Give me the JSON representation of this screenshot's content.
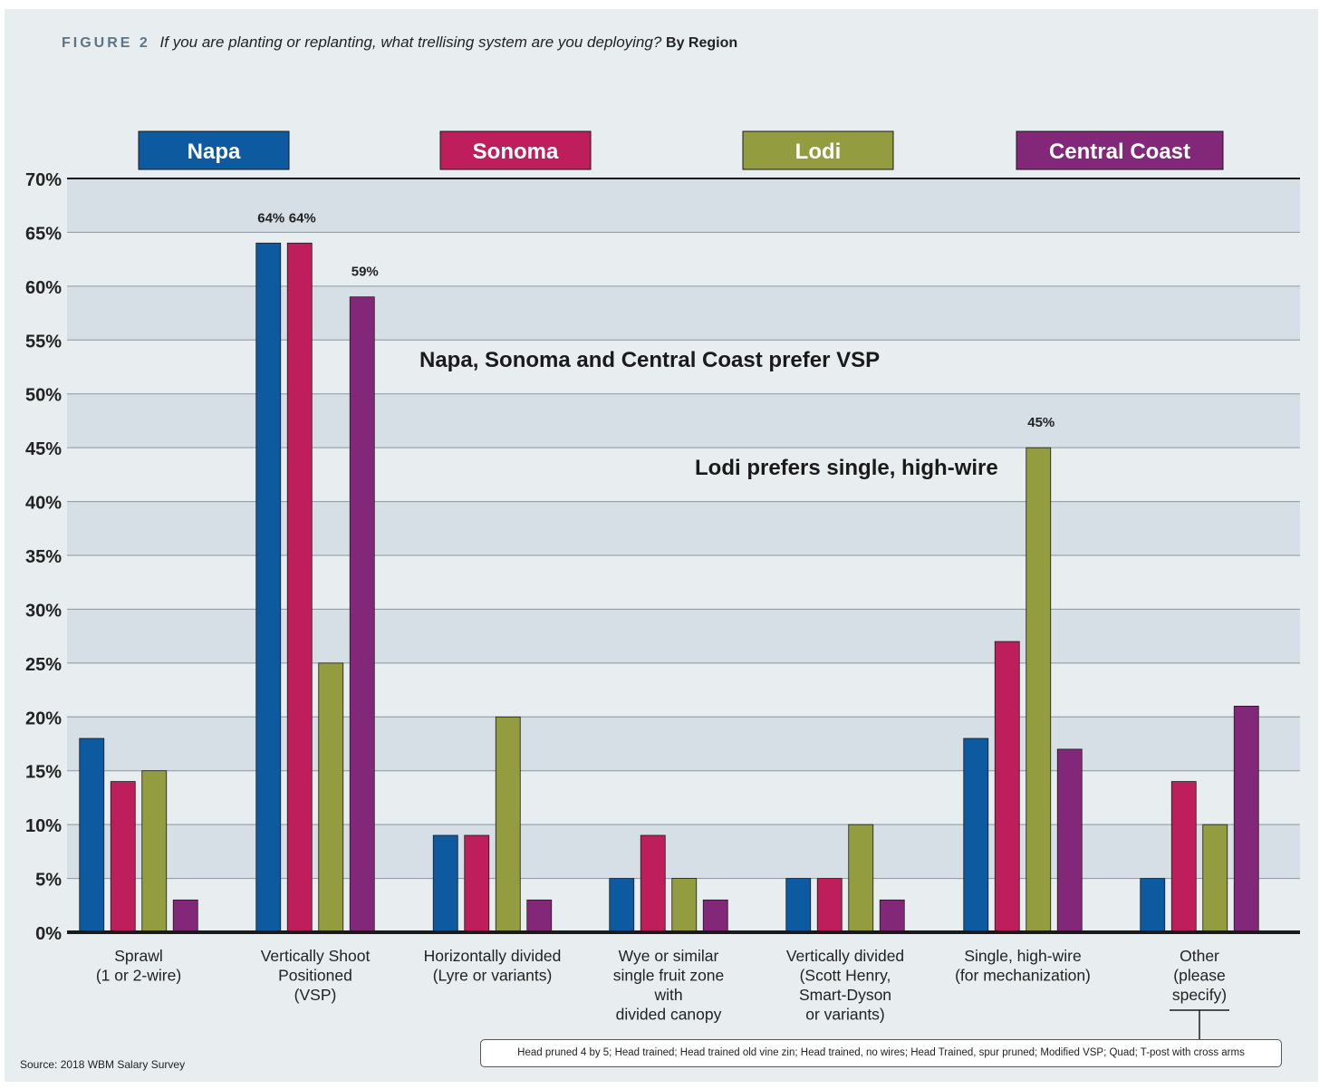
{
  "figure": {
    "label": "FIGURE 2",
    "question": "If you are planting or replanting, what trellising system are you deploying?",
    "suffix": "By Region"
  },
  "source": "Source: 2018 WBM Salary Survey",
  "footnote": "Head pruned 4 by 5; Head trained; Head trained old vine zin; Head trained, no wires; Head Trained, spur pruned; Modified VSP; Quad; T-post with cross arms",
  "chart_data": {
    "type": "bar",
    "title": "If you are planting or replanting, what trellising system are you deploying? By Region",
    "ylim": [
      0,
      70
    ],
    "yticks": [
      0,
      5,
      10,
      15,
      20,
      25,
      30,
      35,
      40,
      45,
      50,
      55,
      60,
      65,
      70
    ],
    "ytick_suffix": "%",
    "grid": true,
    "legend_position": "top",
    "categories": [
      [
        "Sprawl",
        "(1 or 2-wire)"
      ],
      [
        "Vertically Shoot",
        "Positioned",
        "(VSP)"
      ],
      [
        "Horizontally divided",
        "(Lyre or variants)"
      ],
      [
        "Wye or similar",
        "single fruit zone",
        "with",
        "divided canopy"
      ],
      [
        "Vertically divided",
        "(Scott Henry,",
        "Smart-Dyson",
        "or variants)"
      ],
      [
        "Single, high-wire",
        "(for mechanization)"
      ],
      [
        "Other",
        "(please",
        "specify)"
      ]
    ],
    "series": [
      {
        "name": "Napa",
        "color": "#0e5aa0",
        "values": [
          18,
          64,
          9,
          5,
          5,
          18,
          5
        ]
      },
      {
        "name": "Sonoma",
        "color": "#be1f5c",
        "values": [
          14,
          64,
          9,
          9,
          5,
          27,
          14
        ]
      },
      {
        "name": "Lodi",
        "color": "#939c3e",
        "values": [
          15,
          25,
          20,
          5,
          10,
          45,
          10
        ]
      },
      {
        "name": "Central Coast",
        "color": "#832878",
        "values": [
          3,
          59,
          3,
          3,
          3,
          17,
          21
        ]
      }
    ],
    "data_labels": [
      {
        "series": 0,
        "category": 1,
        "text": "64%"
      },
      {
        "series": 1,
        "category": 1,
        "text": "64%"
      },
      {
        "series": 3,
        "category": 1,
        "text": "59%"
      },
      {
        "series": 2,
        "category": 5,
        "text": "45%"
      }
    ],
    "annotations": [
      {
        "text": "Napa, Sonoma and Central Coast prefer VSP",
        "value": 52
      },
      {
        "text": "Lodi prefers single, high-wire",
        "value": 42
      }
    ]
  }
}
